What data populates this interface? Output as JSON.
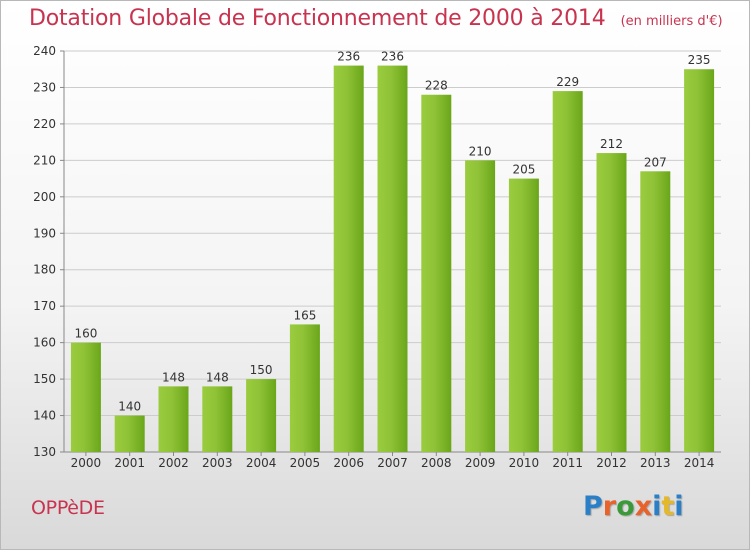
{
  "header": {
    "title": "Dotation Globale de Fonctionnement de 2000 à 2014",
    "unit": "(en milliers d'€)"
  },
  "footer": {
    "commune": "OPPèDE",
    "brand": "Proxiti",
    "brand_colors": [
      "#2a7fc6",
      "#e8622b",
      "#3a9a3a",
      "#e8622b",
      "#2a7fc6",
      "#e4b82a",
      "#2a7fc6"
    ]
  },
  "colors": {
    "title": "#c8334f",
    "bar_light": "#a5d44a",
    "bar_dark": "#5e9a12",
    "grid": "#cccccc"
  },
  "chart_data": {
    "type": "bar",
    "categories": [
      "2000",
      "2001",
      "2002",
      "2003",
      "2004",
      "2005",
      "2006",
      "2007",
      "2008",
      "2009",
      "2010",
      "2011",
      "2012",
      "2013",
      "2014"
    ],
    "values": [
      160,
      140,
      148,
      148,
      150,
      165,
      236,
      236,
      228,
      210,
      205,
      229,
      212,
      207,
      235
    ],
    "ylim": [
      130,
      240
    ],
    "yticks": [
      130,
      140,
      150,
      160,
      170,
      180,
      190,
      200,
      210,
      220,
      230,
      240
    ],
    "grid": true,
    "title": "Dotation Globale de Fonctionnement de 2000 à 2014",
    "xlabel": "",
    "ylabel": ""
  }
}
